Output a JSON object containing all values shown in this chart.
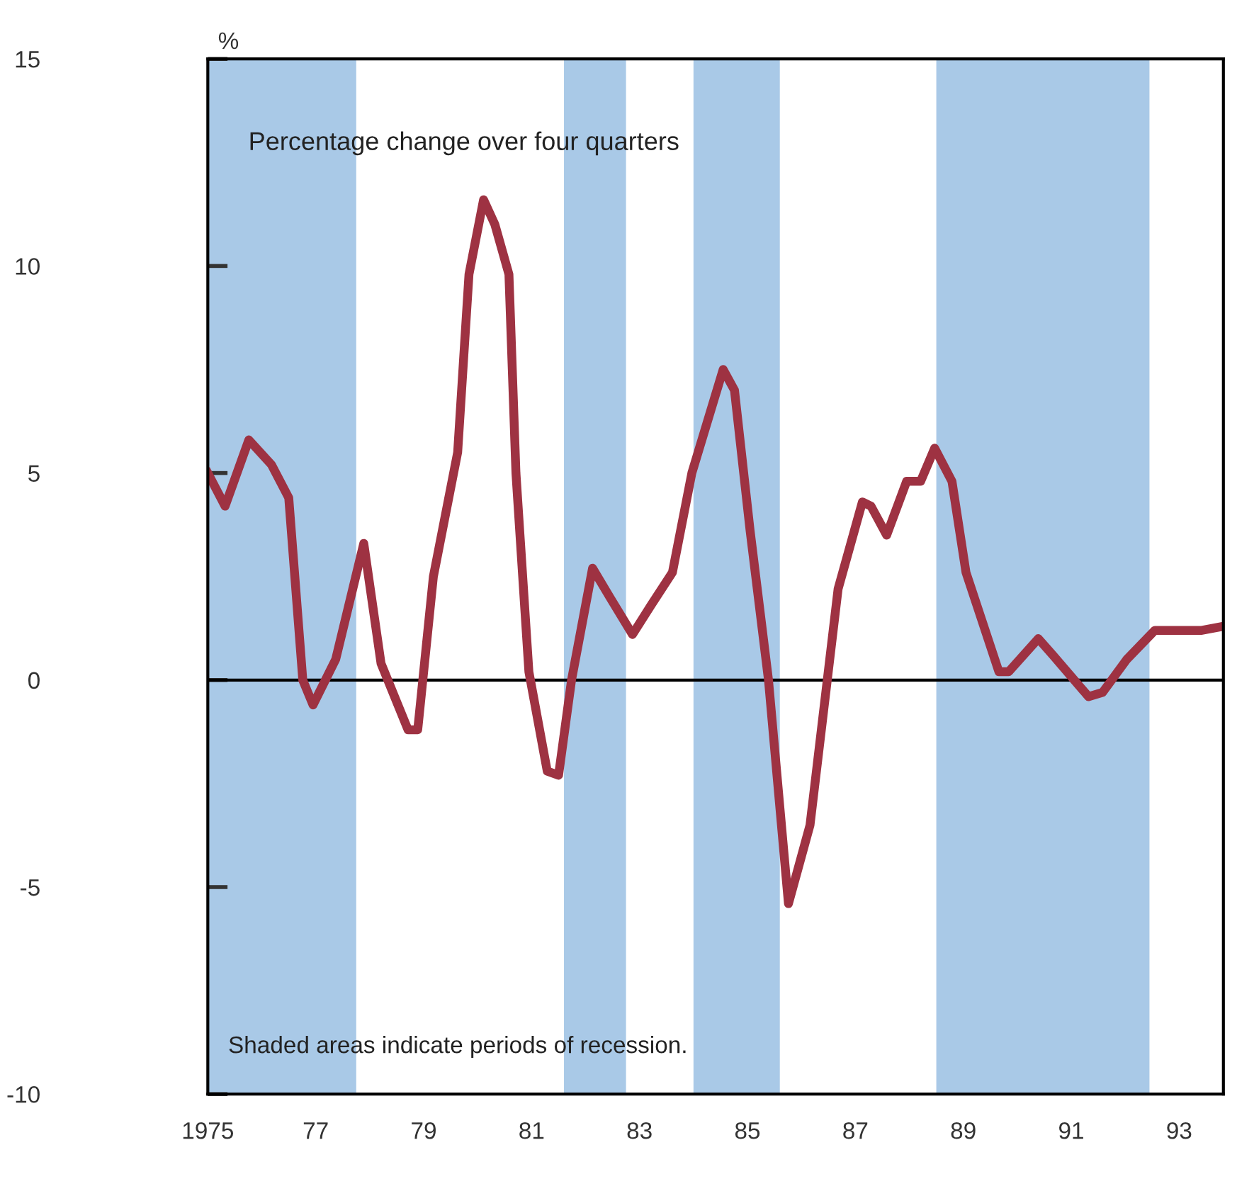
{
  "chart_data": {
    "type": "line",
    "ylabel": "%",
    "xlim": [
      1975.0,
      1993.82
    ],
    "ylim": [
      -10,
      15
    ],
    "xticks": [
      {
        "value": 1975,
        "label": "1975"
      },
      {
        "value": 1977,
        "label": "77"
      },
      {
        "value": 1979,
        "label": "79"
      },
      {
        "value": 1981,
        "label": "81"
      },
      {
        "value": 1983,
        "label": "83"
      },
      {
        "value": 1985,
        "label": "85"
      },
      {
        "value": 1987,
        "label": "87"
      },
      {
        "value": 1989,
        "label": "89"
      },
      {
        "value": 1991,
        "label": "91"
      },
      {
        "value": 1993,
        "label": "93"
      }
    ],
    "yticks": [
      -10,
      -5,
      0,
      5,
      10,
      15
    ],
    "grid": false,
    "legend": false,
    "marker": "none",
    "line_style": "solid",
    "series": [
      {
        "color": "#9e3242",
        "x": [
          1975.0,
          1975.32,
          1975.76,
          1976.18,
          1976.5,
          1976.76,
          1976.95,
          1977.37,
          1977.89,
          1978.21,
          1978.71,
          1978.89,
          1979.18,
          1979.63,
          1979.84,
          1980.11,
          1980.32,
          1980.58,
          1980.71,
          1980.95,
          1981.29,
          1981.5,
          1981.74,
          1982.13,
          1982.45,
          1982.87,
          1983.21,
          1983.61,
          1983.97,
          1984.55,
          1984.76,
          1985.05,
          1985.39,
          1985.76,
          1986.16,
          1986.68,
          1987.13,
          1987.29,
          1987.58,
          1987.95,
          1988.21,
          1988.47,
          1988.79,
          1989.05,
          1989.66,
          1989.84,
          1990.39,
          1990.66,
          1991.32,
          1991.58,
          1992.03,
          1992.55,
          1993.08,
          1993.42,
          1993.82
        ],
        "values": [
          5.0,
          4.2,
          5.8,
          5.2,
          4.4,
          0.0,
          -0.6,
          0.5,
          3.3,
          0.4,
          -1.2,
          -1.2,
          2.5,
          5.5,
          9.8,
          11.6,
          11.0,
          9.8,
          5.0,
          0.2,
          -2.2,
          -2.3,
          0.0,
          2.7,
          2.0,
          1.1,
          1.8,
          2.6,
          5.0,
          7.5,
          7.0,
          3.6,
          0.0,
          -5.4,
          -3.5,
          2.2,
          4.3,
          4.2,
          3.5,
          4.8,
          4.8,
          5.6,
          4.8,
          2.6,
          0.2,
          0.2,
          1.0,
          0.6,
          -0.4,
          -0.3,
          0.5,
          1.2,
          1.2,
          1.2,
          1.3
        ]
      }
    ],
    "bands": [
      {
        "axis": "x",
        "from": 1975.0,
        "to": 1977.75,
        "color": "#a9c9e7"
      },
      {
        "axis": "x",
        "from": 1981.6,
        "to": 1982.75,
        "color": "#a9c9e7"
      },
      {
        "axis": "x",
        "from": 1984.0,
        "to": 1985.6,
        "color": "#a9c9e7"
      },
      {
        "axis": "x",
        "from": 1988.5,
        "to": 1992.45,
        "color": "#a9c9e7"
      }
    ],
    "ref_lines": [
      {
        "axis": "y",
        "value": 0,
        "color": "#000000",
        "line_style": "solid"
      }
    ],
    "annotations": [
      "Percentage change over four quarters",
      "Shaded areas indicate periods of recession."
    ]
  }
}
